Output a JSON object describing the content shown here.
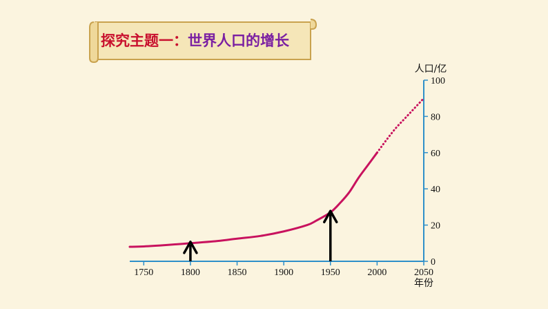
{
  "banner": {
    "part1": "探究主题一：",
    "part2": "世界人口的增长",
    "color1": "#c8102e",
    "color2": "#7a1fa2"
  },
  "chart_data": {
    "type": "line",
    "title": "探究主题一：世界人口的增长",
    "ylabel": "人口/亿",
    "xlabel": "年份",
    "xlim": [
      1735,
      2050
    ],
    "ylim": [
      0,
      100
    ],
    "x_ticks": [
      1750,
      1800,
      1850,
      1900,
      1950,
      2000,
      2050
    ],
    "y_ticks": [
      0,
      20,
      40,
      60,
      80,
      100
    ],
    "series": [
      {
        "style": "solid",
        "color": "#c8125e",
        "points": [
          [
            1735,
            8
          ],
          [
            1750,
            8.2
          ],
          [
            1775,
            9
          ],
          [
            1800,
            10
          ],
          [
            1825,
            11
          ],
          [
            1850,
            12.5
          ],
          [
            1875,
            14
          ],
          [
            1900,
            16.5
          ],
          [
            1925,
            20
          ],
          [
            1935,
            22.5
          ],
          [
            1950,
            27
          ],
          [
            1960,
            32
          ],
          [
            1970,
            38
          ],
          [
            1980,
            46
          ],
          [
            1990,
            53
          ],
          [
            2000,
            60
          ]
        ]
      },
      {
        "style": "dotted",
        "color": "#c8125e",
        "points": [
          [
            2000,
            60
          ],
          [
            2010,
            67
          ],
          [
            2020,
            73.5
          ],
          [
            2030,
            79
          ],
          [
            2040,
            84.5
          ],
          [
            2050,
            90
          ]
        ]
      }
    ],
    "annotations": [
      {
        "type": "arrow",
        "x": 1800,
        "y_tip": 10,
        "color": "#000000"
      },
      {
        "type": "arrow",
        "x": 1950,
        "y_tip": 27,
        "color": "#000000"
      }
    ],
    "axis_color": "#2e8fc9",
    "grid": false
  }
}
